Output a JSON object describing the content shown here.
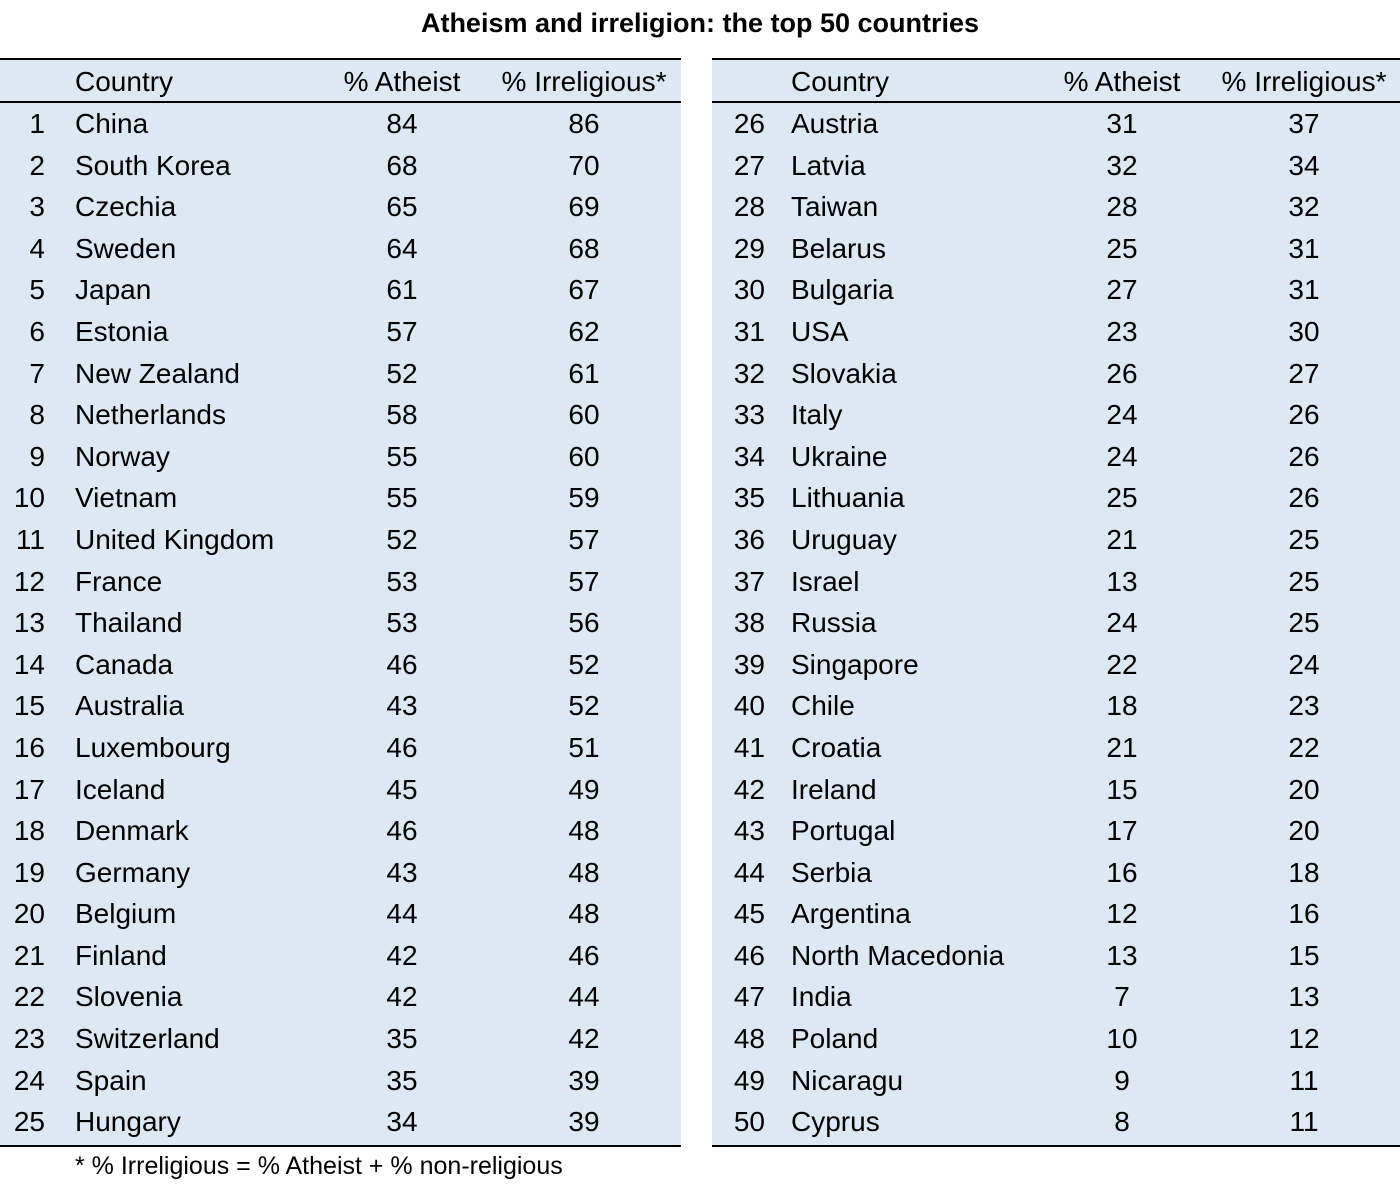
{
  "title": "Atheism and irreligion: the top 50 countries",
  "headers": {
    "country": "Country",
    "atheist": "% Atheist",
    "irreligious": "% Irreligious*"
  },
  "rows": [
    {
      "rank": "1",
      "country": "China",
      "atheist": "84",
      "irreligious": "86"
    },
    {
      "rank": "2",
      "country": "South Korea",
      "atheist": "68",
      "irreligious": "70"
    },
    {
      "rank": "3",
      "country": "Czechia",
      "atheist": "65",
      "irreligious": "69"
    },
    {
      "rank": "4",
      "country": "Sweden",
      "atheist": "64",
      "irreligious": "68"
    },
    {
      "rank": "5",
      "country": "Japan",
      "atheist": "61",
      "irreligious": "67"
    },
    {
      "rank": "6",
      "country": "Estonia",
      "atheist": "57",
      "irreligious": "62"
    },
    {
      "rank": "7",
      "country": "New Zealand",
      "atheist": "52",
      "irreligious": "61"
    },
    {
      "rank": "8",
      "country": "Netherlands",
      "atheist": "58",
      "irreligious": "60"
    },
    {
      "rank": "9",
      "country": "Norway",
      "atheist": "55",
      "irreligious": "60"
    },
    {
      "rank": "10",
      "country": "Vietnam",
      "atheist": "55",
      "irreligious": "59"
    },
    {
      "rank": "11",
      "country": "United Kingdom",
      "atheist": "52",
      "irreligious": "57"
    },
    {
      "rank": "12",
      "country": "France",
      "atheist": "53",
      "irreligious": "57"
    },
    {
      "rank": "13",
      "country": "Thailand",
      "atheist": "53",
      "irreligious": "56"
    },
    {
      "rank": "14",
      "country": "Canada",
      "atheist": "46",
      "irreligious": "52"
    },
    {
      "rank": "15",
      "country": "Australia",
      "atheist": "43",
      "irreligious": "52"
    },
    {
      "rank": "16",
      "country": "Luxembourg",
      "atheist": "46",
      "irreligious": "51"
    },
    {
      "rank": "17",
      "country": "Iceland",
      "atheist": "45",
      "irreligious": "49"
    },
    {
      "rank": "18",
      "country": "Denmark",
      "atheist": "46",
      "irreligious": "48"
    },
    {
      "rank": "19",
      "country": "Germany",
      "atheist": "43",
      "irreligious": "48"
    },
    {
      "rank": "20",
      "country": "Belgium",
      "atheist": "44",
      "irreligious": "48"
    },
    {
      "rank": "21",
      "country": "Finland",
      "atheist": "42",
      "irreligious": "46"
    },
    {
      "rank": "22",
      "country": "Slovenia",
      "atheist": "42",
      "irreligious": "44"
    },
    {
      "rank": "23",
      "country": "Switzerland",
      "atheist": "35",
      "irreligious": "42"
    },
    {
      "rank": "24",
      "country": "Spain",
      "atheist": "35",
      "irreligious": "39"
    },
    {
      "rank": "25",
      "country": "Hungary",
      "atheist": "34",
      "irreligious": "39"
    },
    {
      "rank": "26",
      "country": "Austria",
      "atheist": "31",
      "irreligious": "37"
    },
    {
      "rank": "27",
      "country": "Latvia",
      "atheist": "32",
      "irreligious": "34"
    },
    {
      "rank": "28",
      "country": "Taiwan",
      "atheist": "28",
      "irreligious": "32"
    },
    {
      "rank": "29",
      "country": "Belarus",
      "atheist": "25",
      "irreligious": "31"
    },
    {
      "rank": "30",
      "country": "Bulgaria",
      "atheist": "27",
      "irreligious": "31"
    },
    {
      "rank": "31",
      "country": "USA",
      "atheist": "23",
      "irreligious": "30"
    },
    {
      "rank": "32",
      "country": "Slovakia",
      "atheist": "26",
      "irreligious": "27"
    },
    {
      "rank": "33",
      "country": "Italy",
      "atheist": "24",
      "irreligious": "26"
    },
    {
      "rank": "34",
      "country": "Ukraine",
      "atheist": "24",
      "irreligious": "26"
    },
    {
      "rank": "35",
      "country": "Lithuania",
      "atheist": "25",
      "irreligious": "26"
    },
    {
      "rank": "36",
      "country": "Uruguay",
      "atheist": "21",
      "irreligious": "25"
    },
    {
      "rank": "37",
      "country": "Israel",
      "atheist": "13",
      "irreligious": "25"
    },
    {
      "rank": "38",
      "country": "Russia",
      "atheist": "24",
      "irreligious": "25"
    },
    {
      "rank": "39",
      "country": "Singapore",
      "atheist": "22",
      "irreligious": "24"
    },
    {
      "rank": "40",
      "country": "Chile",
      "atheist": "18",
      "irreligious": "23"
    },
    {
      "rank": "41",
      "country": "Croatia",
      "atheist": "21",
      "irreligious": "22"
    },
    {
      "rank": "42",
      "country": "Ireland",
      "atheist": "15",
      "irreligious": "20"
    },
    {
      "rank": "43",
      "country": "Portugal",
      "atheist": "17",
      "irreligious": "20"
    },
    {
      "rank": "44",
      "country": "Serbia",
      "atheist": "16",
      "irreligious": "18"
    },
    {
      "rank": "45",
      "country": "Argentina",
      "atheist": "12",
      "irreligious": "16"
    },
    {
      "rank": "46",
      "country": "North Macedonia",
      "atheist": "13",
      "irreligious": "15"
    },
    {
      "rank": "47",
      "country": "India",
      "atheist": "7",
      "irreligious": "13"
    },
    {
      "rank": "48",
      "country": "Poland",
      "atheist": "10",
      "irreligious": "12"
    },
    {
      "rank": "49",
      "country": "Nicaragu",
      "atheist": "9",
      "irreligious": "11"
    },
    {
      "rank": "50",
      "country": "Cyprus",
      "atheist": "8",
      "irreligious": "11"
    }
  ],
  "footnote": "* % Irreligious = % Atheist + % non-religious",
  "colors": {
    "table_bg": "#dce9f5",
    "rule": "#000000"
  }
}
